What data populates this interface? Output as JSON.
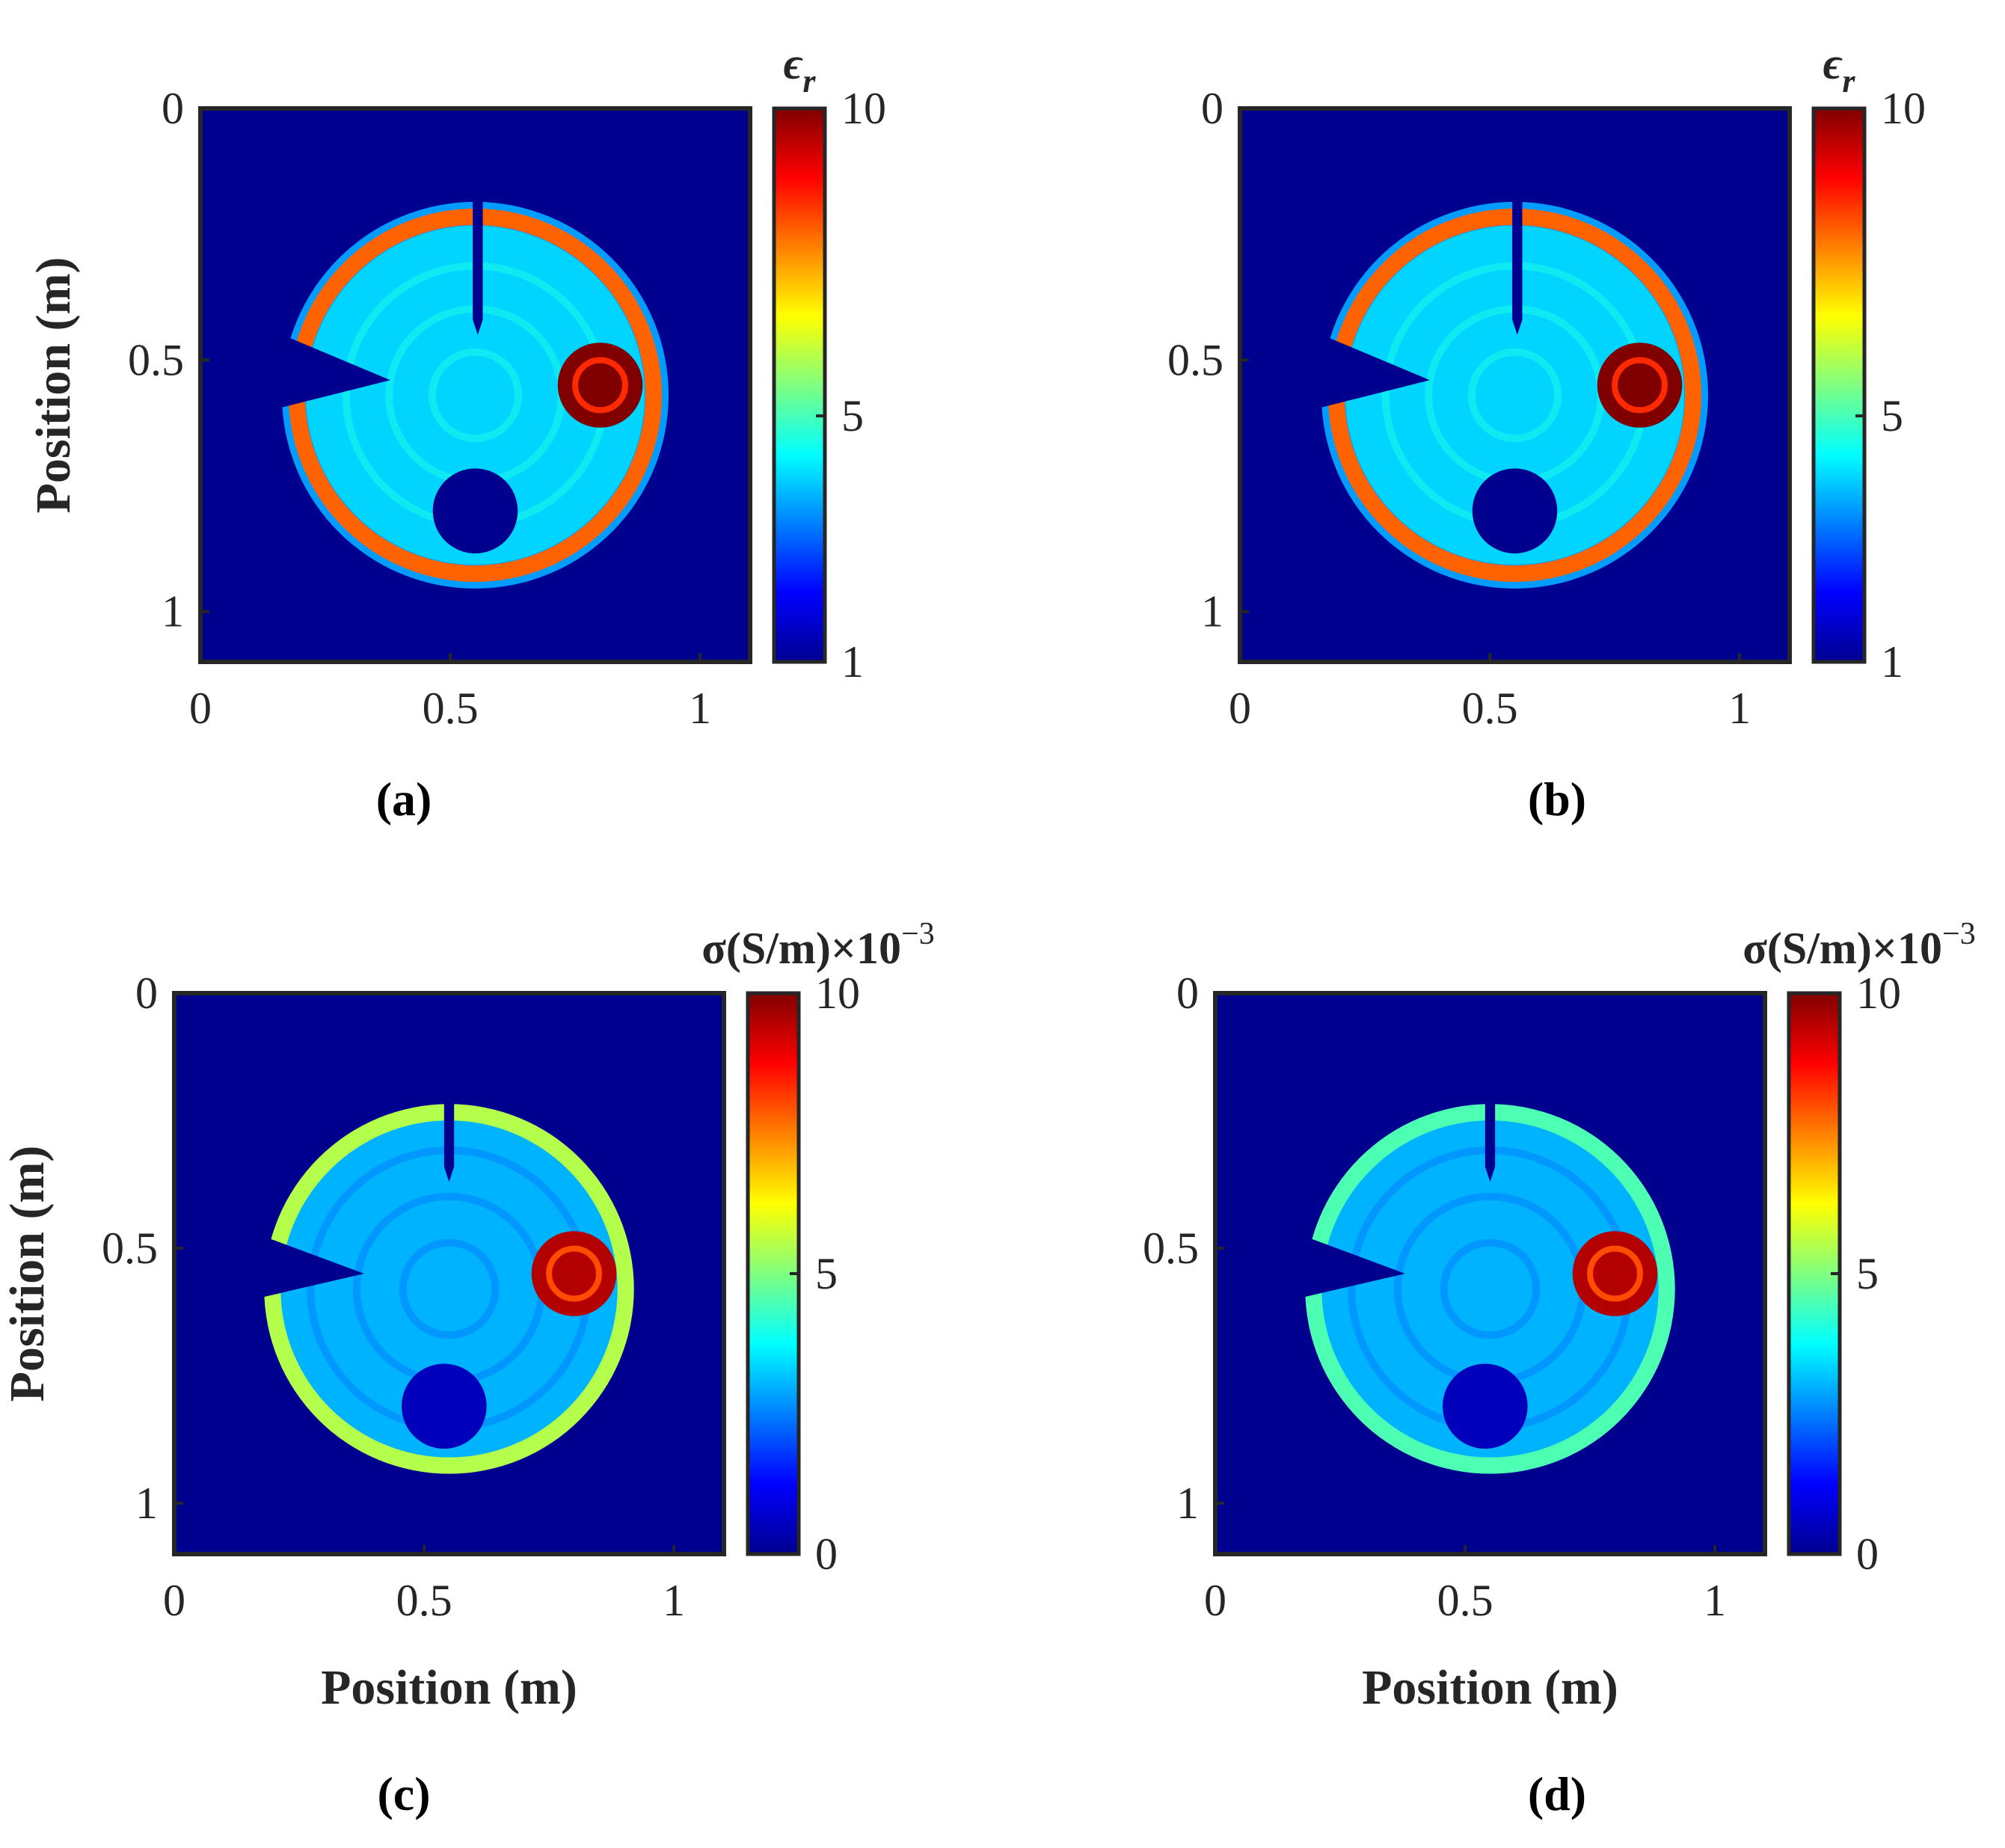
{
  "chart_data": [
    {
      "type": "heatmap",
      "panel": "(a)",
      "xlim": [
        0,
        1.1
      ],
      "ylim": [
        0,
        1.1
      ],
      "y_reversed": true,
      "xticks": [
        "0",
        "0.5",
        "1"
      ],
      "yticks": [
        "0",
        "0.5",
        "1"
      ],
      "xlabel": "",
      "ylabel": "Position (m)",
      "colorbar": {
        "label_main": "ϵ",
        "label_sub": "r",
        "label_sup": "",
        "ticks": [
          "1",
          "5",
          "10"
        ],
        "range": [
          1,
          10
        ]
      },
      "background_value": 1,
      "features": {
        "ring_radius": 0.345,
        "ring_center": [
          0.55,
          0.57
        ],
        "ring_value": 8,
        "interior_value": 4,
        "outer_value": 3.5,
        "strong_inclusion_center": [
          0.8,
          0.55
        ],
        "strong_inclusion_value": 10,
        "weak_inclusion_center": [
          0.55,
          0.8
        ],
        "weak_inclusion_value": 1
      }
    },
    {
      "type": "heatmap",
      "panel": "(b)",
      "xlim": [
        0,
        1.1
      ],
      "ylim": [
        0,
        1.1
      ],
      "y_reversed": true,
      "xticks": [
        "0",
        "0.5",
        "1"
      ],
      "yticks": [
        "0",
        "0.5",
        "1"
      ],
      "xlabel": "",
      "ylabel": "",
      "colorbar": {
        "label_main": "ϵ",
        "label_sub": "r",
        "label_sup": "",
        "ticks": [
          "1",
          "5",
          "10"
        ],
        "range": [
          1,
          10
        ]
      },
      "background_value": 1,
      "features": {
        "ring_radius": 0.345,
        "ring_center": [
          0.55,
          0.57
        ],
        "ring_value": 8,
        "interior_value": 4,
        "outer_value": 3.5,
        "strong_inclusion_center": [
          0.8,
          0.55
        ],
        "strong_inclusion_value": 10,
        "weak_inclusion_center": [
          0.55,
          0.8
        ],
        "weak_inclusion_value": 1
      }
    },
    {
      "type": "heatmap",
      "panel": "(c)",
      "xlim": [
        0,
        1.1
      ],
      "ylim": [
        0,
        1.1
      ],
      "y_reversed": true,
      "xticks": [
        "0",
        "0.5",
        "1"
      ],
      "yticks": [
        "0",
        "0.5",
        "1"
      ],
      "xlabel": "Position (m)",
      "ylabel": "Position (m)",
      "colorbar": {
        "label_main": "σ(S/m)×10",
        "label_sub": "",
        "label_sup": "−3",
        "ticks": [
          "0",
          "5",
          "10"
        ],
        "range": [
          0,
          10
        ]
      },
      "background_value": 0,
      "features": {
        "disk_radius": 0.37,
        "disk_center": [
          0.55,
          0.58
        ],
        "interior_value": 3,
        "edge_value": 5.5,
        "strong_inclusion_center": [
          0.8,
          0.55
        ],
        "strong_inclusion_value": 9.5,
        "weak_inclusion_center": [
          0.54,
          0.81
        ],
        "weak_inclusion_value": 0.5
      }
    },
    {
      "type": "heatmap",
      "panel": "(d)",
      "xlim": [
        0,
        1.1
      ],
      "ylim": [
        0,
        1.1
      ],
      "y_reversed": true,
      "xticks": [
        "0",
        "0.5",
        "1"
      ],
      "yticks": [
        "0",
        "0.5",
        "1"
      ],
      "xlabel": "Position (m)",
      "ylabel": "",
      "colorbar": {
        "label_main": "σ(S/m)×10",
        "label_sub": "",
        "label_sup": "−3",
        "ticks": [
          "0",
          "5",
          "10"
        ],
        "range": [
          0,
          10
        ]
      },
      "background_value": 0,
      "features": {
        "disk_radius": 0.37,
        "disk_center": [
          0.55,
          0.58
        ],
        "interior_value": 3,
        "edge_value": 4.5,
        "strong_inclusion_center": [
          0.8,
          0.55
        ],
        "strong_inclusion_value": 9.5,
        "weak_inclusion_center": [
          0.54,
          0.81
        ],
        "weak_inclusion_value": 0.5
      }
    }
  ],
  "colors": {
    "jet_low": "#00008f",
    "jet_mid": "#00ffff",
    "jet_high": "#800000",
    "axis": "#262626"
  }
}
